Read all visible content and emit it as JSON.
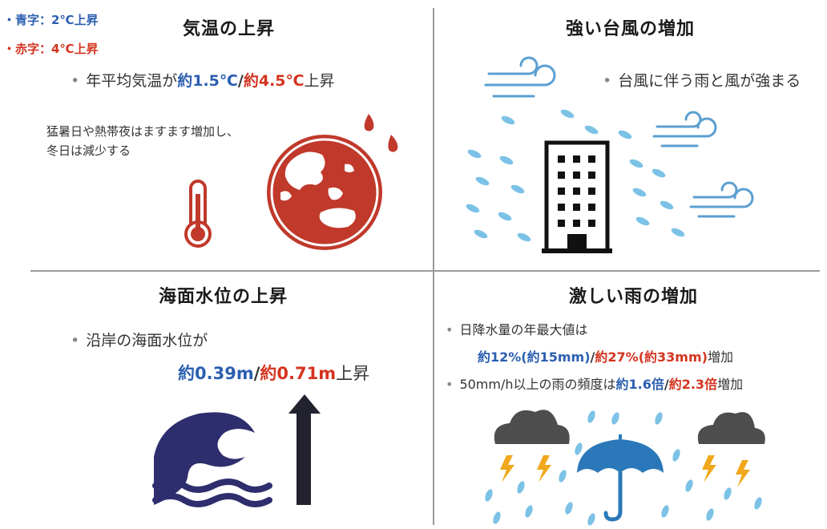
{
  "legend": {
    "blue": "・青字：2℃上昇",
    "red": "・赤字：4℃上昇",
    "blue_color": "#2b5fb0",
    "red_color": "#d4341f"
  },
  "temperature": {
    "title": "気温の上昇",
    "bullet": "•",
    "prefix": "年平均気温が",
    "blue": "約1.5℃",
    "sep": "/",
    "red": "約4.5℃",
    "suffix": "上昇",
    "note_line1": "猛暑日や熱帯夜はますます増加し、",
    "note_line2": "冬日は減少する",
    "icons": [
      "thermometer-icon",
      "earth-globe-icon",
      "sweat-drop-icon"
    ]
  },
  "typhoon": {
    "title": "強い台風の増加",
    "bullet": "•",
    "text": "台風に伴う雨と風が強まる",
    "icons": [
      "wind-icon",
      "rain-drop-icon",
      "building-icon"
    ]
  },
  "sea_level": {
    "title": "海面水位の上昇",
    "bullet": "•",
    "line1": "沿岸の海面水位が",
    "blue": "約0.39m",
    "sep": "/",
    "red": "約0.71m",
    "suffix": "上昇",
    "icons": [
      "wave-icon",
      "up-arrow-icon"
    ]
  },
  "heavy_rain": {
    "title": "激しい雨の増加",
    "bullet": "•",
    "line1": "日降水量の年最大値は",
    "blue2": "約12%(約15mm)",
    "sep": "/",
    "red2": "約27%(約33mm)",
    "suffix2": "増加",
    "line3_prefix": "50mm/h以上の雨の頻度は",
    "blue3": "約1.6倍",
    "red3": "約2.3倍",
    "suffix3": "増加",
    "icons": [
      "storm-cloud-icon",
      "lightning-icon",
      "umbrella-icon",
      "rain-drop-icon"
    ]
  }
}
